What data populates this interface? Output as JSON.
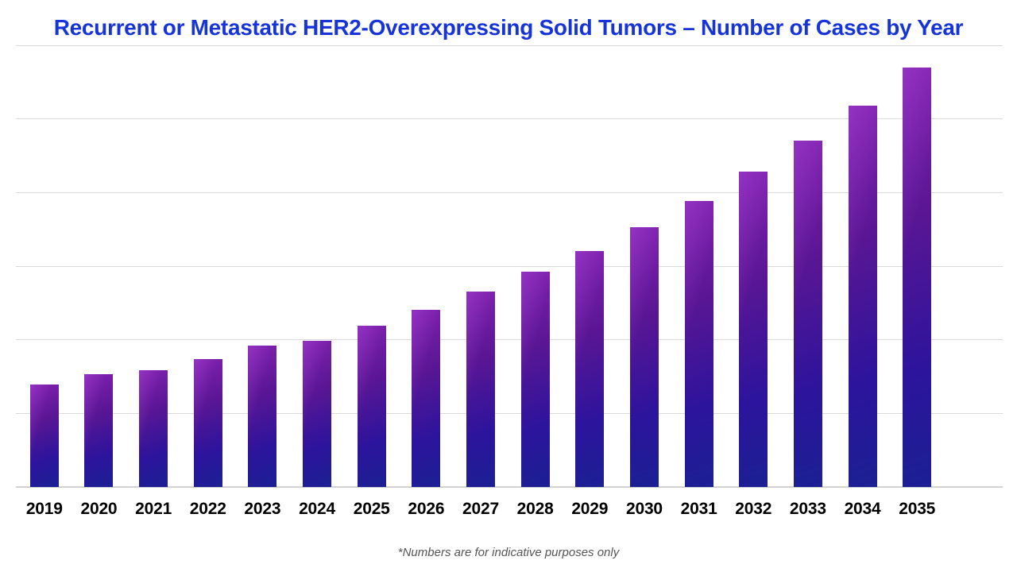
{
  "footnote": "*Numbers are for indicative purposes only",
  "colors": {
    "background": "#ffffff",
    "title_text": "#1734d8",
    "bar_gradient_top_left": "#8121b0",
    "bar_gradient_mid": "#5a1694",
    "bar_gradient_deep": "#2c149c",
    "bar_gradient_bottom_right": "#1b2093",
    "gridline": "#d9d9d9",
    "axis_baseline": "#d2d2d2",
    "x_label_text": "#000000",
    "footnote_text": "#555555"
  },
  "chart_data": {
    "type": "bar",
    "title": "Recurrent or Metastatic HER2-Overexpressing Solid Tumors – Number of Cases by Year",
    "xlabel": "",
    "ylabel": "",
    "categories": [
      "2019",
      "2020",
      "2021",
      "2022",
      "2023",
      "2024",
      "2025",
      "2026",
      "2027",
      "2028",
      "2029",
      "2030",
      "2031",
      "2032",
      "2033",
      "2034",
      "2035"
    ],
    "values": [
      139,
      153,
      159,
      174,
      192,
      199,
      219,
      241,
      266,
      292,
      321,
      353,
      388,
      428,
      470,
      518,
      570
    ],
    "ylim": [
      0,
      600
    ],
    "y_tick_labels_visible": false,
    "value_units": "indicative (no y-axis labels shown); 100 = one gridline interval",
    "gridlines": "horizontal, 7 lines including top rule and baseline",
    "legend": "none",
    "annotation": "*Numbers are for indicative purposes only"
  }
}
